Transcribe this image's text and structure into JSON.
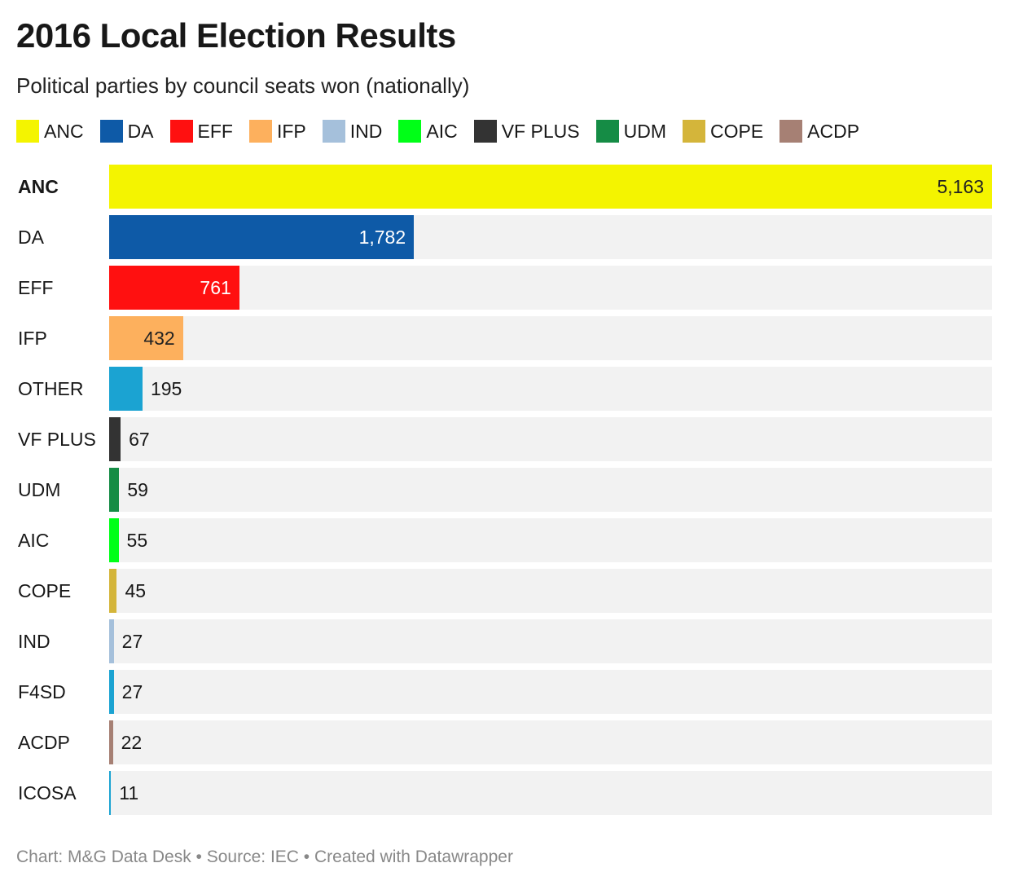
{
  "title": "2016 Local Election Results",
  "subtitle": "Political parties by council seats won (nationally)",
  "footer": "Chart: M&G Data Desk • Source: IEC • Created with Datawrapper",
  "legend": [
    {
      "label": "ANC",
      "color": "#f4f400"
    },
    {
      "label": "DA",
      "color": "#0e5aa7"
    },
    {
      "label": "EFF",
      "color": "#ff1010"
    },
    {
      "label": "IFP",
      "color": "#fdb05d"
    },
    {
      "label": "IND",
      "color": "#a5c0db"
    },
    {
      "label": "AIC",
      "color": "#00ff17"
    },
    {
      "label": "VF PLUS",
      "color": "#333333"
    },
    {
      "label": "UDM",
      "color": "#158c45"
    },
    {
      "label": "COPE",
      "color": "#d4b53a"
    },
    {
      "label": "ACDP",
      "color": "#a68074"
    }
  ],
  "chart_data": {
    "type": "bar",
    "orientation": "horizontal",
    "xlim": [
      0,
      5163
    ],
    "categories": [
      "ANC",
      "DA",
      "EFF",
      "IFP",
      "OTHER",
      "VF PLUS",
      "UDM",
      "AIC",
      "COPE",
      "IND",
      "F4SD",
      "ACDP",
      "ICOSA"
    ],
    "values": [
      5163,
      1782,
      761,
      432,
      195,
      67,
      59,
      55,
      45,
      27,
      27,
      22,
      11
    ],
    "value_labels": [
      "5,163",
      "1,782",
      "761",
      "432",
      "195",
      "67",
      "59",
      "55",
      "45",
      "27",
      "27",
      "22",
      "11"
    ],
    "colors": [
      "#f4f400",
      "#0e5aa7",
      "#ff1010",
      "#fdb05d",
      "#1ba3d2",
      "#333333",
      "#158c45",
      "#00ff17",
      "#d4b53a",
      "#a5c0db",
      "#1ba3d2",
      "#a68074",
      "#1ba3d2"
    ],
    "bold_category": "ANC"
  }
}
